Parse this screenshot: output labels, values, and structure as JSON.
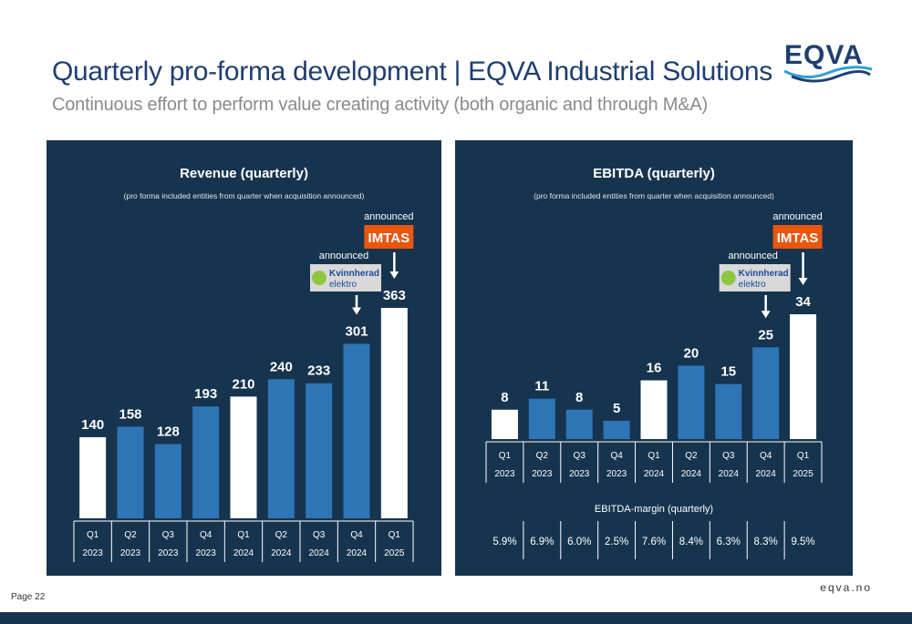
{
  "page": {
    "title": "Quarterly pro-forma development | EQVA Industrial Solutions",
    "subtitle": "Continuous effort to perform value creating activity (both organic and through M&A)",
    "logo_text": "EQVA",
    "page_number": "Page 22",
    "website": "eqva.no"
  },
  "colors": {
    "panel_bg": "#16344e",
    "bar_blue": "#2e75b6",
    "bar_white": "#ffffff",
    "imtas_orange": "#e8560f",
    "kvinnherad_bg": "#d9d9d9",
    "kvinnherad_green": "#8dc63f",
    "kvinnherad_blue": "#1a4a9c"
  },
  "chart_data": [
    {
      "type": "bar",
      "title": "Revenue (quarterly)",
      "subtitle": "(pro forma included entities from quarter when acquisition announced)",
      "categories": [
        {
          "quarter": "Q1",
          "year": "2023"
        },
        {
          "quarter": "Q2",
          "year": "2023"
        },
        {
          "quarter": "Q3",
          "year": "2023"
        },
        {
          "quarter": "Q4",
          "year": "2023"
        },
        {
          "quarter": "Q1",
          "year": "2024"
        },
        {
          "quarter": "Q2",
          "year": "2024"
        },
        {
          "quarter": "Q3",
          "year": "2024"
        },
        {
          "quarter": "Q4",
          "year": "2024"
        },
        {
          "quarter": "Q1",
          "year": "2025"
        }
      ],
      "values": [
        140,
        158,
        128,
        193,
        210,
        240,
        233,
        301,
        363
      ],
      "highlight": [
        "white",
        "blue",
        "blue",
        "blue",
        "white",
        "blue",
        "blue",
        "blue",
        "white"
      ],
      "ylim": [
        0,
        363
      ],
      "grid": false,
      "annotations": [
        {
          "label": "announced",
          "company": "Kvinnherad elektro",
          "bar_index": 7
        },
        {
          "label": "announced",
          "company": "IMTAS",
          "bar_index": 8
        }
      ]
    },
    {
      "type": "bar",
      "title": "EBITDA (quarterly)",
      "subtitle": "(pro forma included entities from quarter when acquisition announced)",
      "categories": [
        {
          "quarter": "Q1",
          "year": "2023"
        },
        {
          "quarter": "Q2",
          "year": "2023"
        },
        {
          "quarter": "Q3",
          "year": "2023"
        },
        {
          "quarter": "Q4",
          "year": "2023"
        },
        {
          "quarter": "Q1",
          "year": "2024"
        },
        {
          "quarter": "Q2",
          "year": "2024"
        },
        {
          "quarter": "Q3",
          "year": "2024"
        },
        {
          "quarter": "Q4",
          "year": "2024"
        },
        {
          "quarter": "Q1",
          "year": "2025"
        }
      ],
      "values": [
        8,
        11,
        8,
        5,
        16,
        20,
        15,
        25,
        34
      ],
      "highlight": [
        "white",
        "blue",
        "blue",
        "blue",
        "white",
        "blue",
        "blue",
        "blue",
        "white"
      ],
      "ylim": [
        0,
        34
      ],
      "grid": false,
      "margin_label": "EBITDA-margin (quarterly)",
      "margins": [
        "5.9%",
        "6.9%",
        "6.0%",
        "2.5%",
        "7.6%",
        "8.4%",
        "6.3%",
        "8.3%",
        "9.5%"
      ],
      "annotations": [
        {
          "label": "announced",
          "company": "Kvinnherad elektro",
          "bar_index": 7
        },
        {
          "label": "announced",
          "company": "IMTAS",
          "bar_index": 8
        }
      ]
    }
  ],
  "logos": {
    "imtas": "IMTAS",
    "kvinnherad_line1": "Kvinnherad",
    "kvinnherad_line2": "elektro"
  }
}
